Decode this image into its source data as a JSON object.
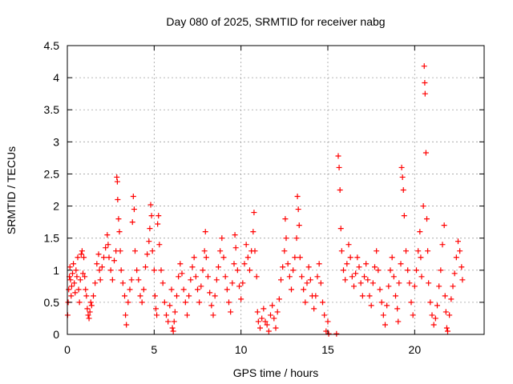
{
  "chart_data": {
    "type": "scatter",
    "title": "Day 080 of 2025, SRMTID for receiver nabg",
    "xlabel": "GPS time / hours",
    "ylabel": "SRMTID / TECUs",
    "xlim": [
      0,
      24
    ],
    "ylim": [
      0,
      4.5
    ],
    "x_ticks": [
      "0",
      "5",
      "10",
      "15",
      "20"
    ],
    "y_ticks": [
      "0",
      "0.5",
      "1",
      "1.5",
      "2",
      "2.5",
      "3",
      "3.5",
      "4",
      "4.5"
    ],
    "grid": true,
    "marker": "+",
    "series": [
      {
        "color": "#ff0000",
        "points": [
          [
            0.02,
            0.3
          ],
          [
            0.05,
            0.5
          ],
          [
            0.08,
            0.7
          ],
          [
            0.12,
            0.9
          ],
          [
            0.15,
            1.05
          ],
          [
            0.18,
            0.85
          ],
          [
            0.22,
            0.6
          ],
          [
            0.25,
            0.75
          ],
          [
            0.3,
            0.95
          ],
          [
            0.35,
            1.1
          ],
          [
            0.4,
            0.8
          ],
          [
            0.45,
            0.65
          ],
          [
            0.5,
            1.0
          ],
          [
            0.55,
            0.9
          ],
          [
            0.6,
            1.2
          ],
          [
            0.65,
            0.7
          ],
          [
            0.7,
            0.5
          ],
          [
            0.75,
            0.85
          ],
          [
            0.8,
            1.25
          ],
          [
            0.85,
            1.3
          ],
          [
            0.9,
            0.95
          ],
          [
            0.95,
            1.2
          ],
          [
            1.0,
            0.9
          ],
          [
            1.05,
            0.7
          ],
          [
            1.1,
            0.6
          ],
          [
            1.15,
            0.4
          ],
          [
            1.2,
            0.3
          ],
          [
            1.25,
            0.25
          ],
          [
            1.3,
            0.35
          ],
          [
            1.35,
            0.5
          ],
          [
            1.4,
            0.45
          ],
          [
            1.5,
            0.6
          ],
          [
            1.6,
            0.8
          ],
          [
            1.7,
            1.1
          ],
          [
            1.8,
            1.25
          ],
          [
            1.85,
            1.0
          ],
          [
            1.9,
            0.85
          ],
          [
            2.0,
            1.05
          ],
          [
            2.1,
            1.2
          ],
          [
            2.2,
            1.35
          ],
          [
            2.3,
            1.55
          ],
          [
            2.35,
            1.4
          ],
          [
            2.4,
            1.2
          ],
          [
            2.5,
            1.0
          ],
          [
            2.6,
            0.85
          ],
          [
            2.7,
            1.15
          ],
          [
            2.8,
            1.3
          ],
          [
            2.85,
            2.45
          ],
          [
            2.88,
            2.38
          ],
          [
            2.9,
            2.1
          ],
          [
            2.95,
            1.8
          ],
          [
            3.0,
            1.6
          ],
          [
            3.05,
            1.3
          ],
          [
            3.1,
            1.0
          ],
          [
            3.2,
            0.8
          ],
          [
            3.3,
            0.6
          ],
          [
            3.35,
            0.3
          ],
          [
            3.4,
            0.15
          ],
          [
            3.5,
            0.5
          ],
          [
            3.6,
            0.7
          ],
          [
            3.7,
            0.85
          ],
          [
            3.75,
            1.75
          ],
          [
            3.8,
            2.15
          ],
          [
            3.85,
            1.95
          ],
          [
            3.9,
            1.3
          ],
          [
            4.0,
            1.0
          ],
          [
            4.1,
            0.85
          ],
          [
            4.2,
            0.6
          ],
          [
            4.3,
            0.5
          ],
          [
            4.4,
            0.7
          ],
          [
            4.5,
            1.05
          ],
          [
            4.6,
            1.25
          ],
          [
            4.7,
            1.45
          ],
          [
            4.75,
            1.65
          ],
          [
            4.8,
            2.02
          ],
          [
            4.85,
            1.85
          ],
          [
            4.9,
            1.3
          ],
          [
            5.0,
            1.0
          ],
          [
            5.05,
            0.6
          ],
          [
            5.1,
            0.4
          ],
          [
            5.15,
            0.3
          ],
          [
            5.2,
            1.72
          ],
          [
            5.25,
            1.85
          ],
          [
            5.3,
            1.4
          ],
          [
            5.4,
            1.0
          ],
          [
            5.5,
            0.8
          ],
          [
            5.6,
            0.5
          ],
          [
            5.7,
            0.3
          ],
          [
            5.8,
            0.2
          ],
          [
            5.9,
            0.45
          ],
          [
            6.0,
            0.7
          ],
          [
            6.05,
            0.1
          ],
          [
            6.1,
            0.05
          ],
          [
            6.15,
            0.2
          ],
          [
            6.2,
            0.35
          ],
          [
            6.3,
            0.6
          ],
          [
            6.4,
            0.9
          ],
          [
            6.5,
            1.1
          ],
          [
            6.6,
            0.95
          ],
          [
            6.7,
            0.7
          ],
          [
            6.8,
            0.5
          ],
          [
            6.9,
            0.3
          ],
          [
            7.0,
            0.6
          ],
          [
            7.1,
            0.85
          ],
          [
            7.2,
            1.05
          ],
          [
            7.3,
            1.2
          ],
          [
            7.4,
            0.9
          ],
          [
            7.5,
            0.7
          ],
          [
            7.6,
            0.5
          ],
          [
            7.7,
            0.75
          ],
          [
            7.8,
            1.0
          ],
          [
            7.9,
            1.3
          ],
          [
            7.95,
            1.6
          ],
          [
            8.0,
            1.2
          ],
          [
            8.1,
            0.9
          ],
          [
            8.2,
            0.65
          ],
          [
            8.3,
            0.45
          ],
          [
            8.4,
            0.3
          ],
          [
            8.5,
            0.6
          ],
          [
            8.6,
            0.85
          ],
          [
            8.7,
            1.05
          ],
          [
            8.8,
            1.3
          ],
          [
            8.9,
            1.5
          ],
          [
            9.0,
            1.2
          ],
          [
            9.1,
            0.9
          ],
          [
            9.2,
            0.7
          ],
          [
            9.3,
            0.5
          ],
          [
            9.4,
            0.35
          ],
          [
            9.5,
            0.8
          ],
          [
            9.6,
            1.1
          ],
          [
            9.65,
            1.55
          ],
          [
            9.7,
            1.35
          ],
          [
            9.8,
            1.0
          ],
          [
            9.9,
            0.75
          ],
          [
            10.0,
            0.55
          ],
          [
            10.1,
            0.8
          ],
          [
            10.2,
            1.1
          ],
          [
            10.3,
            1.4
          ],
          [
            10.4,
            1.2
          ],
          [
            10.5,
            1.0
          ],
          [
            10.6,
            1.3
          ],
          [
            10.7,
            1.6
          ],
          [
            10.75,
            1.9
          ],
          [
            10.8,
            1.3
          ],
          [
            10.9,
            0.9
          ],
          [
            10.95,
            0.35
          ],
          [
            11.0,
            0.2
          ],
          [
            11.1,
            0.1
          ],
          [
            11.2,
            0.25
          ],
          [
            11.3,
            0.4
          ],
          [
            11.4,
            0.2
          ],
          [
            11.5,
            0.15
          ],
          [
            11.6,
            0.05
          ],
          [
            11.7,
            0.3
          ],
          [
            11.8,
            0.45
          ],
          [
            11.9,
            0.25
          ],
          [
            12.0,
            0.1
          ],
          [
            12.1,
            0.35
          ],
          [
            12.2,
            0.55
          ],
          [
            12.3,
            0.85
          ],
          [
            12.4,
            1.05
          ],
          [
            12.5,
            1.3
          ],
          [
            12.55,
            1.8
          ],
          [
            12.6,
            1.5
          ],
          [
            12.7,
            1.1
          ],
          [
            12.8,
            0.9
          ],
          [
            12.9,
            0.7
          ],
          [
            13.0,
            1.0
          ],
          [
            13.1,
            1.2
          ],
          [
            13.2,
            1.5
          ],
          [
            13.25,
            2.15
          ],
          [
            13.3,
            1.95
          ],
          [
            13.35,
            1.7
          ],
          [
            13.4,
            1.2
          ],
          [
            13.5,
            0.9
          ],
          [
            13.6,
            0.7
          ],
          [
            13.7,
            0.5
          ],
          [
            13.8,
            0.8
          ],
          [
            13.9,
            1.05
          ],
          [
            14.0,
            0.85
          ],
          [
            14.1,
            0.6
          ],
          [
            14.2,
            0.4
          ],
          [
            14.3,
            0.6
          ],
          [
            14.4,
            0.9
          ],
          [
            14.5,
            1.1
          ],
          [
            14.6,
            0.8
          ],
          [
            14.7,
            0.5
          ],
          [
            14.8,
            0.3
          ],
          [
            14.9,
            0.05
          ],
          [
            15.0,
            0.2
          ],
          [
            15.05,
            0.01
          ],
          [
            15.5,
            0.01
          ],
          [
            15.6,
            2.78
          ],
          [
            15.65,
            2.6
          ],
          [
            15.7,
            2.25
          ],
          [
            15.75,
            1.65
          ],
          [
            15.8,
            1.3
          ],
          [
            15.9,
            1.0
          ],
          [
            16.0,
            0.85
          ],
          [
            16.1,
            1.1
          ],
          [
            16.2,
            1.4
          ],
          [
            16.3,
            1.2
          ],
          [
            16.4,
            0.9
          ],
          [
            16.5,
            0.75
          ],
          [
            16.6,
            0.95
          ],
          [
            16.7,
            1.2
          ],
          [
            16.8,
            1.05
          ],
          [
            16.9,
            0.8
          ],
          [
            17.0,
            0.6
          ],
          [
            17.1,
            0.9
          ],
          [
            17.2,
            1.1
          ],
          [
            17.3,
            0.85
          ],
          [
            17.4,
            0.6
          ],
          [
            17.5,
            0.45
          ],
          [
            17.6,
            0.8
          ],
          [
            17.7,
            1.05
          ],
          [
            17.8,
            1.3
          ],
          [
            17.9,
            1.0
          ],
          [
            18.0,
            0.7
          ],
          [
            18.1,
            0.5
          ],
          [
            18.2,
            0.3
          ],
          [
            18.3,
            0.15
          ],
          [
            18.4,
            0.45
          ],
          [
            18.5,
            0.75
          ],
          [
            18.6,
            1.0
          ],
          [
            18.7,
            1.2
          ],
          [
            18.8,
            0.9
          ],
          [
            18.9,
            0.6
          ],
          [
            19.0,
            0.4
          ],
          [
            19.05,
            0.2
          ],
          [
            19.1,
            0.8
          ],
          [
            19.2,
            1.1
          ],
          [
            19.25,
            2.6
          ],
          [
            19.3,
            2.45
          ],
          [
            19.35,
            2.25
          ],
          [
            19.4,
            1.85
          ],
          [
            19.5,
            1.3
          ],
          [
            19.6,
            1.0
          ],
          [
            19.7,
            0.8
          ],
          [
            19.8,
            0.5
          ],
          [
            19.9,
            0.3
          ],
          [
            20.0,
            0.75
          ],
          [
            20.1,
            1.0
          ],
          [
            20.2,
            1.3
          ],
          [
            20.3,
            1.6
          ],
          [
            20.35,
            1.2
          ],
          [
            20.4,
            0.9
          ],
          [
            20.5,
            2.0
          ],
          [
            20.55,
            4.18
          ],
          [
            20.58,
            3.92
          ],
          [
            20.6,
            3.75
          ],
          [
            20.65,
            2.83
          ],
          [
            20.7,
            1.8
          ],
          [
            20.75,
            1.3
          ],
          [
            20.8,
            0.8
          ],
          [
            20.9,
            0.5
          ],
          [
            21.0,
            0.3
          ],
          [
            21.1,
            0.15
          ],
          [
            21.2,
            0.25
          ],
          [
            21.3,
            0.45
          ],
          [
            21.4,
            0.75
          ],
          [
            21.5,
            1.0
          ],
          [
            21.6,
            1.4
          ],
          [
            21.7,
            1.7
          ],
          [
            21.75,
            0.6
          ],
          [
            21.8,
            0.35
          ],
          [
            21.85,
            0.1
          ],
          [
            21.9,
            0.05
          ],
          [
            22.0,
            0.3
          ],
          [
            22.1,
            0.55
          ],
          [
            22.2,
            0.75
          ],
          [
            22.3,
            0.95
          ],
          [
            22.4,
            1.2
          ],
          [
            22.5,
            1.45
          ],
          [
            22.6,
            1.3
          ],
          [
            22.7,
            1.05
          ],
          [
            22.75,
            0.85
          ]
        ]
      }
    ]
  }
}
